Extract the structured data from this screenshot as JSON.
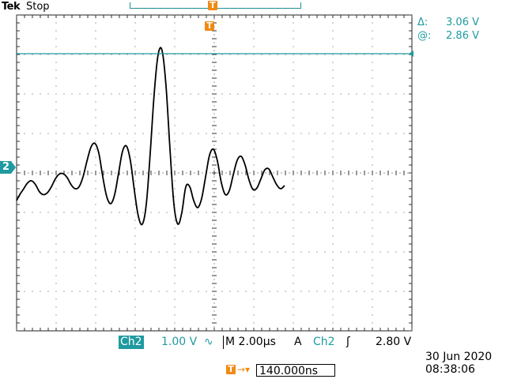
{
  "topbar": {
    "brand": "Tek",
    "status": "Stop"
  },
  "trigger_markers": {
    "top": "T",
    "position": "T"
  },
  "channel_marker": "2",
  "cursor": {
    "delta_symbol": "Δ:",
    "delta_value": "3.06 V",
    "at_symbol": "@:",
    "at_value": "2.86 V"
  },
  "bottom_bar": {
    "channel": "Ch2",
    "scale": "1.00 V",
    "coupling_icon": "∿",
    "timebase_prefix": "M",
    "timebase": "2.00µs",
    "trigger_mode": "A",
    "trigger_source": "Ch2",
    "trigger_slope_icon": "ʃ",
    "trigger_level": "2.80 V"
  },
  "trigger_offset": {
    "arrow": "→▾",
    "value": "140.000ns"
  },
  "timestamp": {
    "date": "30 Jun  2020",
    "time": "08:38:06"
  },
  "colors": {
    "channel2": "#1f9aa0",
    "trigger": "#f08a14",
    "trace": "#000000",
    "grid": "#555555"
  },
  "waveform": {
    "description_units": "samples in divisions",
    "time_div": [
      "2.00µs"
    ],
    "samples": [
      [
        -5.0,
        -0.7
      ],
      [
        -4.92,
        -0.55
      ],
      [
        -4.82,
        -0.4
      ],
      [
        -4.72,
        -0.25
      ],
      [
        -4.62,
        -0.2
      ],
      [
        -4.52,
        -0.3
      ],
      [
        -4.42,
        -0.48
      ],
      [
        -4.32,
        -0.55
      ],
      [
        -4.22,
        -0.5
      ],
      [
        -4.12,
        -0.35
      ],
      [
        -4.02,
        -0.15
      ],
      [
        -3.92,
        -0.03
      ],
      [
        -3.82,
        -0.02
      ],
      [
        -3.72,
        -0.12
      ],
      [
        -3.62,
        -0.3
      ],
      [
        -3.52,
        -0.4
      ],
      [
        -3.42,
        -0.35
      ],
      [
        -3.32,
        -0.1
      ],
      [
        -3.22,
        0.3
      ],
      [
        -3.12,
        0.65
      ],
      [
        -3.02,
        0.75
      ],
      [
        -2.92,
        0.5
      ],
      [
        -2.82,
        -0.1
      ],
      [
        -2.72,
        -0.6
      ],
      [
        -2.62,
        -0.78
      ],
      [
        -2.52,
        -0.55
      ],
      [
        -2.42,
        0.0
      ],
      [
        -2.32,
        0.55
      ],
      [
        -2.22,
        0.68
      ],
      [
        -2.12,
        0.3
      ],
      [
        -2.02,
        -0.45
      ],
      [
        -1.92,
        -1.1
      ],
      [
        -1.82,
        -1.3
      ],
      [
        -1.72,
        -0.8
      ],
      [
        -1.62,
        0.5
      ],
      [
        -1.52,
        2.0
      ],
      [
        -1.42,
        3.0
      ],
      [
        -1.32,
        3.1
      ],
      [
        -1.22,
        2.2
      ],
      [
        -1.12,
        0.6
      ],
      [
        -1.02,
        -0.8
      ],
      [
        -0.92,
        -1.3
      ],
      [
        -0.82,
        -1.0
      ],
      [
        -0.72,
        -0.35
      ],
      [
        -0.62,
        -0.35
      ],
      [
        -0.52,
        -0.7
      ],
      [
        -0.42,
        -0.88
      ],
      [
        -0.32,
        -0.65
      ],
      [
        -0.22,
        -0.1
      ],
      [
        -0.12,
        0.45
      ],
      [
        -0.02,
        0.6
      ],
      [
        0.08,
        0.3
      ],
      [
        0.18,
        -0.25
      ],
      [
        0.28,
        -0.55
      ],
      [
        0.38,
        -0.45
      ],
      [
        0.48,
        -0.05
      ],
      [
        0.58,
        0.32
      ],
      [
        0.68,
        0.42
      ],
      [
        0.78,
        0.2
      ],
      [
        0.88,
        -0.18
      ],
      [
        0.98,
        -0.42
      ],
      [
        1.08,
        -0.38
      ],
      [
        1.18,
        -0.15
      ],
      [
        1.28,
        0.08
      ],
      [
        1.38,
        0.1
      ],
      [
        1.48,
        -0.1
      ],
      [
        1.58,
        -0.3
      ],
      [
        1.68,
        -0.4
      ],
      [
        1.78,
        -0.32
      ]
    ]
  }
}
